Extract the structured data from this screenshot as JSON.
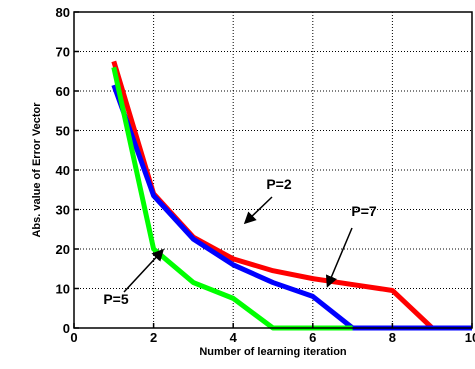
{
  "chart_data": {
    "type": "line",
    "title": "",
    "xlabel": "Number of learning iteration",
    "ylabel": "Abs. value of Error Vector",
    "xlim": [
      0,
      10
    ],
    "ylim": [
      0,
      80
    ],
    "xticks": [
      0,
      2,
      4,
      6,
      8,
      10
    ],
    "yticks": [
      0,
      10,
      20,
      30,
      40,
      50,
      60,
      70,
      80
    ],
    "xtick_labels": [
      "0",
      "2",
      "4",
      "6",
      "8",
      "10"
    ],
    "ytick_labels": [
      "0",
      "10",
      "20",
      "30",
      "40",
      "50",
      "60",
      "70",
      "80"
    ],
    "grid": true,
    "legend": "none",
    "series": [
      {
        "name": "P=2",
        "color": "#ff0000",
        "x": [
          1,
          2,
          3,
          4,
          5,
          6,
          7,
          8,
          9
        ],
        "y": [
          67.5,
          34,
          23,
          17.5,
          14.5,
          12.5,
          11,
          9.5,
          0
        ]
      },
      {
        "name": "P=7",
        "color": "#0000ff",
        "x": [
          1,
          2,
          3,
          4,
          5,
          6,
          7,
          10
        ],
        "y": [
          61.5,
          33.5,
          22.5,
          16,
          11.5,
          8,
          0,
          0
        ]
      },
      {
        "name": "P=5",
        "color": "#00ff00",
        "x": [
          1,
          2,
          3,
          4,
          5,
          7
        ],
        "y": [
          66,
          20,
          11.5,
          7.5,
          0,
          0
        ]
      }
    ],
    "annotations": [
      {
        "text": "P=2",
        "series": "P=2"
      },
      {
        "text": "P=7",
        "series": "P=7"
      },
      {
        "text": "P=5",
        "series": "P=5"
      }
    ]
  }
}
